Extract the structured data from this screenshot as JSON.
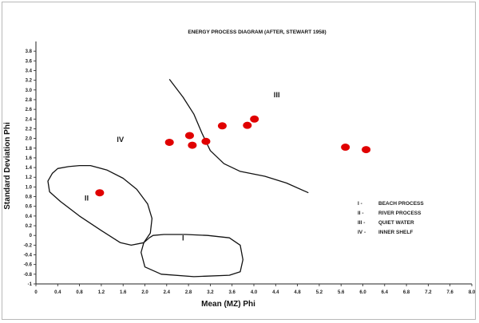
{
  "chart_data": {
    "type": "scatter",
    "title": "ENERGY PROCESS DIAGRAM (AFTER, STEWART 1958)",
    "xlabel": "Mean (MZ) Phi",
    "ylabel": "Standard Deviation Phi",
    "xlim": [
      0,
      8.0
    ],
    "ylim": [
      -1,
      4.0
    ],
    "x_ticks": [
      "0",
      "0.4",
      "0.8",
      "1.2",
      "1.6",
      "2.0",
      "2.4",
      "2.8",
      "3.2",
      "3.6",
      "4.0",
      "4.4",
      "4.8",
      "5.2",
      "5.6",
      "6.0",
      "6.4",
      "6.8",
      "7.2",
      "7.6",
      "8.0"
    ],
    "y_ticks": [
      "3.8",
      "3.6",
      "3.4",
      "3.2",
      "3.0",
      "2.8",
      "2.6",
      "2.4",
      "2.2",
      "2.0",
      "1.8",
      "1.6",
      "1.4",
      "1.2",
      "1.0",
      "0.8",
      "0.6",
      "0.4",
      "0.2",
      "0",
      "-0.2",
      "-0.4",
      "-0.6",
      "-0.8",
      "-1"
    ],
    "marker_color": "#e00000",
    "points": [
      {
        "x": 1.17,
        "y": 0.88
      },
      {
        "x": 2.45,
        "y": 1.92
      },
      {
        "x": 2.82,
        "y": 2.06
      },
      {
        "x": 2.87,
        "y": 1.86
      },
      {
        "x": 3.12,
        "y": 1.94
      },
      {
        "x": 3.42,
        "y": 2.26
      },
      {
        "x": 3.88,
        "y": 2.27
      },
      {
        "x": 4.01,
        "y": 2.4
      },
      {
        "x": 5.68,
        "y": 1.82
      },
      {
        "x": 6.06,
        "y": 1.77
      }
    ],
    "regions": [
      {
        "label": "I",
        "label_pos": {
          "x": 2.7,
          "y": -0.1
        },
        "outline": [
          [
            2.15,
            0.0
          ],
          [
            2.35,
            0.02
          ],
          [
            2.75,
            0.02
          ],
          [
            3.15,
            0.0
          ],
          [
            3.55,
            -0.05
          ],
          [
            3.75,
            -0.2
          ],
          [
            3.8,
            -0.5
          ],
          [
            3.75,
            -0.75
          ],
          [
            3.55,
            -0.82
          ],
          [
            2.9,
            -0.85
          ],
          [
            2.3,
            -0.8
          ],
          [
            2.0,
            -0.65
          ],
          [
            1.93,
            -0.35
          ],
          [
            1.98,
            -0.15
          ],
          [
            2.08,
            -0.05
          ],
          [
            2.15,
            0.0
          ]
        ]
      },
      {
        "label": "II",
        "label_pos": {
          "x": 0.93,
          "y": 0.72
        },
        "outline": [
          [
            0.4,
            1.38
          ],
          [
            0.6,
            1.42
          ],
          [
            0.8,
            1.44
          ],
          [
            1.0,
            1.44
          ],
          [
            1.3,
            1.35
          ],
          [
            1.6,
            1.18
          ],
          [
            1.85,
            0.95
          ],
          [
            2.05,
            0.65
          ],
          [
            2.13,
            0.35
          ],
          [
            2.1,
            0.05
          ],
          [
            1.98,
            -0.15
          ],
          [
            1.75,
            -0.2
          ],
          [
            1.55,
            -0.15
          ],
          [
            1.2,
            0.1
          ],
          [
            0.8,
            0.4
          ],
          [
            0.45,
            0.7
          ],
          [
            0.25,
            0.9
          ],
          [
            0.22,
            1.12
          ],
          [
            0.3,
            1.28
          ],
          [
            0.4,
            1.38
          ]
        ]
      },
      {
        "label": "III",
        "label_pos": {
          "x": 4.42,
          "y": 2.85
        }
      },
      {
        "label": "IV",
        "label_pos": {
          "x": 1.55,
          "y": 1.93
        }
      }
    ],
    "boundary": [
      [
        2.45,
        3.22
      ],
      [
        2.7,
        2.85
      ],
      [
        2.9,
        2.5
      ],
      [
        3.05,
        2.1
      ],
      [
        3.2,
        1.75
      ],
      [
        3.45,
        1.48
      ],
      [
        3.75,
        1.32
      ],
      [
        4.2,
        1.22
      ],
      [
        4.6,
        1.08
      ],
      [
        5.0,
        0.88
      ]
    ],
    "legend": [
      {
        "numeral": "I -",
        "text": "BEACH PROCESS"
      },
      {
        "numeral": "II -",
        "text": "RIVER PROCESS"
      },
      {
        "numeral": "III -",
        "text": "QUIET WATER"
      },
      {
        "numeral": "IV -",
        "text": "INNER SHELF"
      }
    ]
  }
}
